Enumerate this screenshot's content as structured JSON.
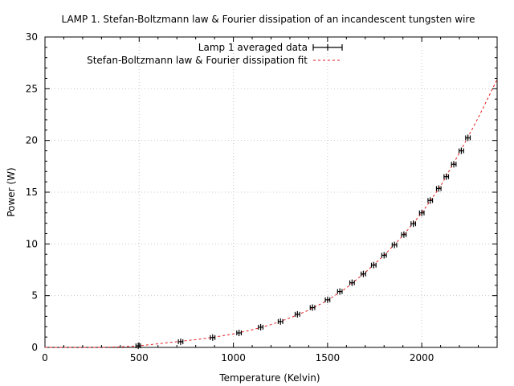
{
  "chart_data": {
    "type": "scatter",
    "title": "LAMP 1. Stefan-Boltzmann law & Fourier dissipation of an incandescent tungsten wire",
    "xlabel": "Temperature (Kelvin)",
    "ylabel": "Power (W)",
    "xlim": [
      0,
      2400
    ],
    "ylim": [
      0,
      30
    ],
    "x_ticks": [
      0,
      500,
      1000,
      1500,
      2000
    ],
    "y_ticks": [
      0,
      5,
      10,
      15,
      20,
      25,
      30
    ],
    "x_minor_step": 100,
    "y_minor_step": 1,
    "grid": true,
    "legend_position": "top",
    "series": [
      {
        "name": "Lamp 1 averaged data",
        "kind": "points_with_xerror",
        "color": "#000000",
        "x_error": 12,
        "points": [
          {
            "x": 495,
            "y": 0.15
          },
          {
            "x": 720,
            "y": 0.55
          },
          {
            "x": 890,
            "y": 0.95
          },
          {
            "x": 1030,
            "y": 1.4
          },
          {
            "x": 1145,
            "y": 1.95
          },
          {
            "x": 1250,
            "y": 2.5
          },
          {
            "x": 1340,
            "y": 3.2
          },
          {
            "x": 1420,
            "y": 3.85
          },
          {
            "x": 1500,
            "y": 4.6
          },
          {
            "x": 1565,
            "y": 5.4
          },
          {
            "x": 1630,
            "y": 6.25
          },
          {
            "x": 1690,
            "y": 7.1
          },
          {
            "x": 1745,
            "y": 7.95
          },
          {
            "x": 1800,
            "y": 8.9
          },
          {
            "x": 1855,
            "y": 9.9
          },
          {
            "x": 1905,
            "y": 10.9
          },
          {
            "x": 1955,
            "y": 11.95
          },
          {
            "x": 2000,
            "y": 13.0
          },
          {
            "x": 2045,
            "y": 14.2
          },
          {
            "x": 2090,
            "y": 15.35
          },
          {
            "x": 2130,
            "y": 16.5
          },
          {
            "x": 2170,
            "y": 17.7
          },
          {
            "x": 2210,
            "y": 19.0
          },
          {
            "x": 2245,
            "y": 20.25
          }
        ]
      },
      {
        "name": "Stefan-Boltzmann law & Fourier dissipation fit",
        "kind": "line",
        "color": "#e41a1c",
        "dash": "3 3",
        "x": [
          0,
          200,
          300,
          400,
          500,
          600,
          700,
          800,
          900,
          1000,
          1100,
          1200,
          1300,
          1400,
          1500,
          1600,
          1700,
          1800,
          1900,
          2000,
          2100,
          2200,
          2300,
          2400
        ],
        "y": [
          0,
          0.0,
          0.0,
          0.05,
          0.15,
          0.35,
          0.55,
          0.75,
          1.0,
          1.3,
          1.7,
          2.2,
          2.85,
          3.6,
          4.55,
          5.75,
          7.25,
          8.9,
          10.8,
          13.0,
          15.6,
          18.8,
          22.2,
          25.9
        ]
      }
    ]
  }
}
